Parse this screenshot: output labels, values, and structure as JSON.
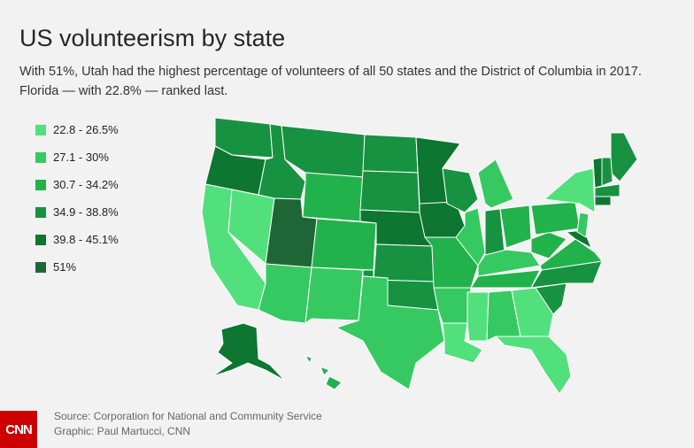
{
  "header": {
    "title": "US volunteerism by state",
    "subtitle": "With 51%, Utah had the highest percentage of volunteers of all 50 states and the District of Columbia in 2017. Florida — with 22.8% — ranked last."
  },
  "legend": {
    "items": [
      {
        "label": "22.8 - 26.5%",
        "color": "#52e07d"
      },
      {
        "label": "27.1 - 30%",
        "color": "#36c962"
      },
      {
        "label": "30.7 - 34.2%",
        "color": "#22b24c"
      },
      {
        "label": "34.9 - 38.8%",
        "color": "#179240"
      },
      {
        "label": "39.8 - 45.1%",
        "color": "#0d7630"
      },
      {
        "label": "51%",
        "color": "#1f6636"
      }
    ]
  },
  "footer": {
    "source": "Source: Corporation for National and Community Service",
    "credit": "Graphic: Paul Martucci, CNN",
    "logo": "CNN"
  }
}
